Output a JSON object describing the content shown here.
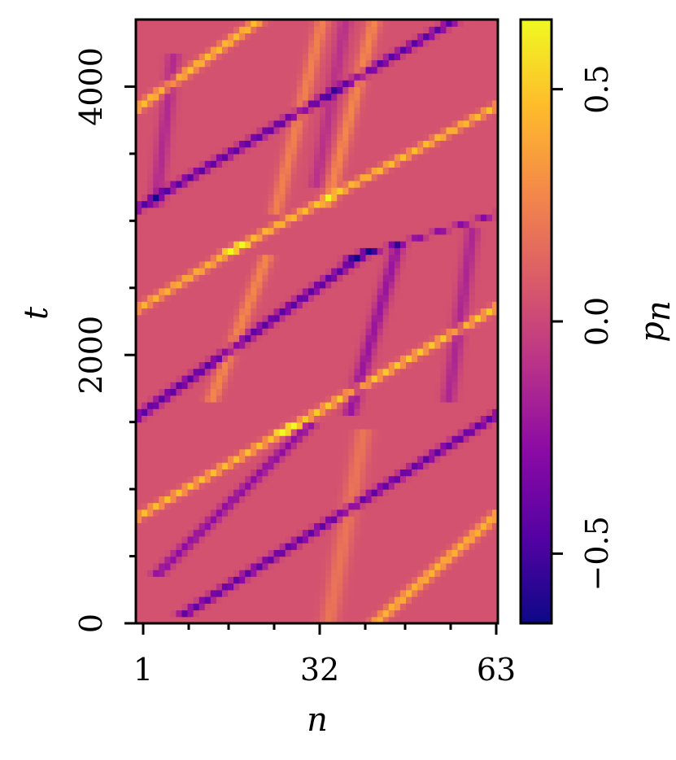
{
  "chart_data": {
    "type": "heatmap",
    "title": "",
    "xlabel": "n",
    "ylabel": "t",
    "colorbar_label": "p_n",
    "colormap": "plasma",
    "x_range": [
      1,
      63
    ],
    "y_range": [
      0,
      4500
    ],
    "z_range": [
      -0.65,
      0.65
    ],
    "x_ticks": [
      1,
      32,
      63
    ],
    "x_minor_ticks": [
      9,
      16,
      24,
      40,
      47,
      55
    ],
    "y_ticks": [
      0,
      2000,
      4000
    ],
    "y_minor_ticks": [
      500,
      1000,
      1500,
      2500,
      3000,
      3500
    ],
    "colorbar_ticks": [
      -0.5,
      0.0,
      0.5
    ],
    "x_tick_labels": [
      "1",
      "32",
      "63"
    ],
    "y_tick_labels": [
      "0",
      "2000",
      "4000"
    ],
    "colorbar_tick_labels": [
      "−0.5",
      "0.0",
      "0.5"
    ],
    "background_value": 0.05,
    "bands": [
      {
        "n0": 1,
        "t0": 800,
        "n1": 27,
        "t1": 1450,
        "amp": 0.42,
        "width": 1.3
      },
      {
        "n0": 27,
        "t0": 1450,
        "n1": 63,
        "t1": 2350,
        "amp": 0.45,
        "width": 1.3
      },
      {
        "n0": 1,
        "t0": 2350,
        "n1": 18,
        "t1": 2800,
        "amp": 0.38,
        "width": 1.3
      },
      {
        "n0": 18,
        "t0": 2800,
        "n1": 63,
        "t1": 3850,
        "amp": 0.42,
        "width": 1.3
      },
      {
        "n0": 1,
        "t0": 3850,
        "n1": 22,
        "t1": 4500,
        "amp": 0.42,
        "width": 1.3
      },
      {
        "n0": 42,
        "t0": 0,
        "n1": 63,
        "t1": 800,
        "amp": 0.38,
        "width": 1.3
      },
      {
        "n0": 10,
        "t0": 100,
        "n1": 63,
        "t1": 1550,
        "amp": -0.48,
        "width": 1.3
      },
      {
        "n0": 1,
        "t0": 1550,
        "n1": 40,
        "t1": 2750,
        "amp": -0.5,
        "width": 1.3
      },
      {
        "n0": 40,
        "t0": 2750,
        "n1": 63,
        "t1": 3050,
        "amp": -0.35,
        "width": 1.3
      },
      {
        "n0": 1,
        "t0": 3100,
        "n1": 56,
        "t1": 4500,
        "amp": -0.5,
        "width": 1.3
      },
      {
        "n0": 5,
        "t0": 400,
        "n1": 30,
        "t1": 1450,
        "amp": -0.32,
        "width": 1.2
      },
      {
        "n0": 38,
        "t0": 1600,
        "n1": 46,
        "t1": 2800,
        "amp": -0.28,
        "width": 1.2
      },
      {
        "n0": 14,
        "t0": 1700,
        "n1": 23,
        "t1": 2700,
        "amp": 0.22,
        "width": 1.2
      },
      {
        "n0": 25,
        "t0": 3100,
        "n1": 33,
        "t1": 4500,
        "amp": 0.2,
        "width": 1.2
      },
      {
        "n0": 34,
        "t0": 3150,
        "n1": 42,
        "t1": 4500,
        "amp": 0.22,
        "width": 1.2
      },
      {
        "n0": 55,
        "t0": 1700,
        "n1": 59,
        "t1": 2900,
        "amp": -0.2,
        "width": 1.2
      },
      {
        "n0": 32,
        "t0": 3300,
        "n1": 37,
        "t1": 4500,
        "amp": -0.15,
        "width": 1.2
      },
      {
        "n0": 34,
        "t0": 0,
        "n1": 40,
        "t1": 1400,
        "amp": 0.15,
        "width": 1.5
      },
      {
        "n0": 4,
        "t0": 3150,
        "n1": 7,
        "t1": 4200,
        "amp": -0.18,
        "width": 1.2
      }
    ]
  }
}
